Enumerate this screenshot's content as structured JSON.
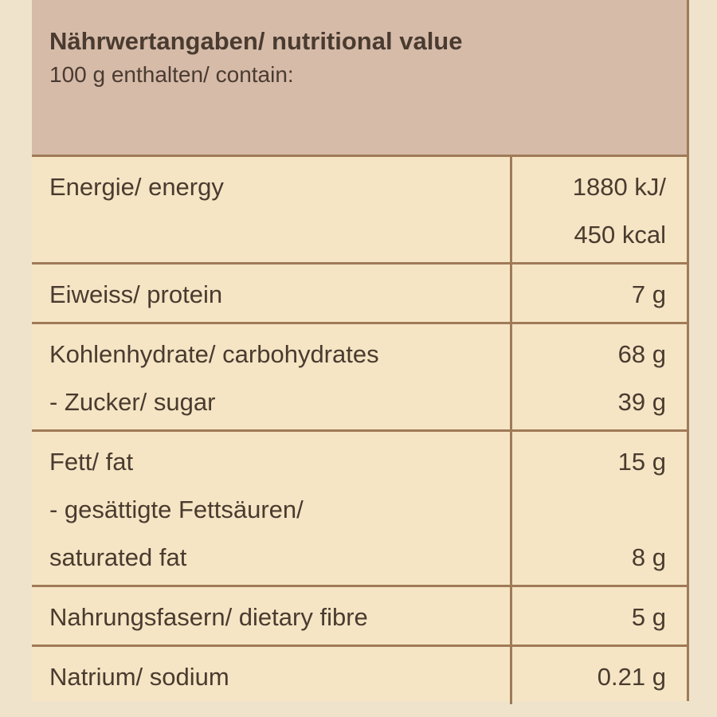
{
  "header": {
    "title": "Nährwertangaben/ nutritional value",
    "subtitle": "100 g enthalten/ contain:"
  },
  "table": {
    "rows": [
      [
        {
          "label": "Energie/ energy",
          "value": "1880 kJ/"
        },
        {
          "value": "450 kcal"
        }
      ],
      [
        {
          "label": "Eiweiss/ protein",
          "value": "7 g"
        }
      ],
      [
        {
          "label": "Kohlenhydrate/ carbohydrates",
          "value": "68 g"
        },
        {
          "label": "- Zucker/ sugar",
          "value": "39 g"
        }
      ],
      [
        {
          "label": "Fett/ fat",
          "value": "15 g"
        },
        {
          "label": "- gesättigte Fettsäuren/"
        },
        {
          "label": "saturated fat",
          "value": "8 g"
        }
      ],
      [
        {
          "label": "Nahrungsfasern/ dietary fibre",
          "value": "5 g"
        }
      ],
      [
        {
          "label": "Natrium/ sodium",
          "value": "0.21 g"
        }
      ]
    ]
  }
}
